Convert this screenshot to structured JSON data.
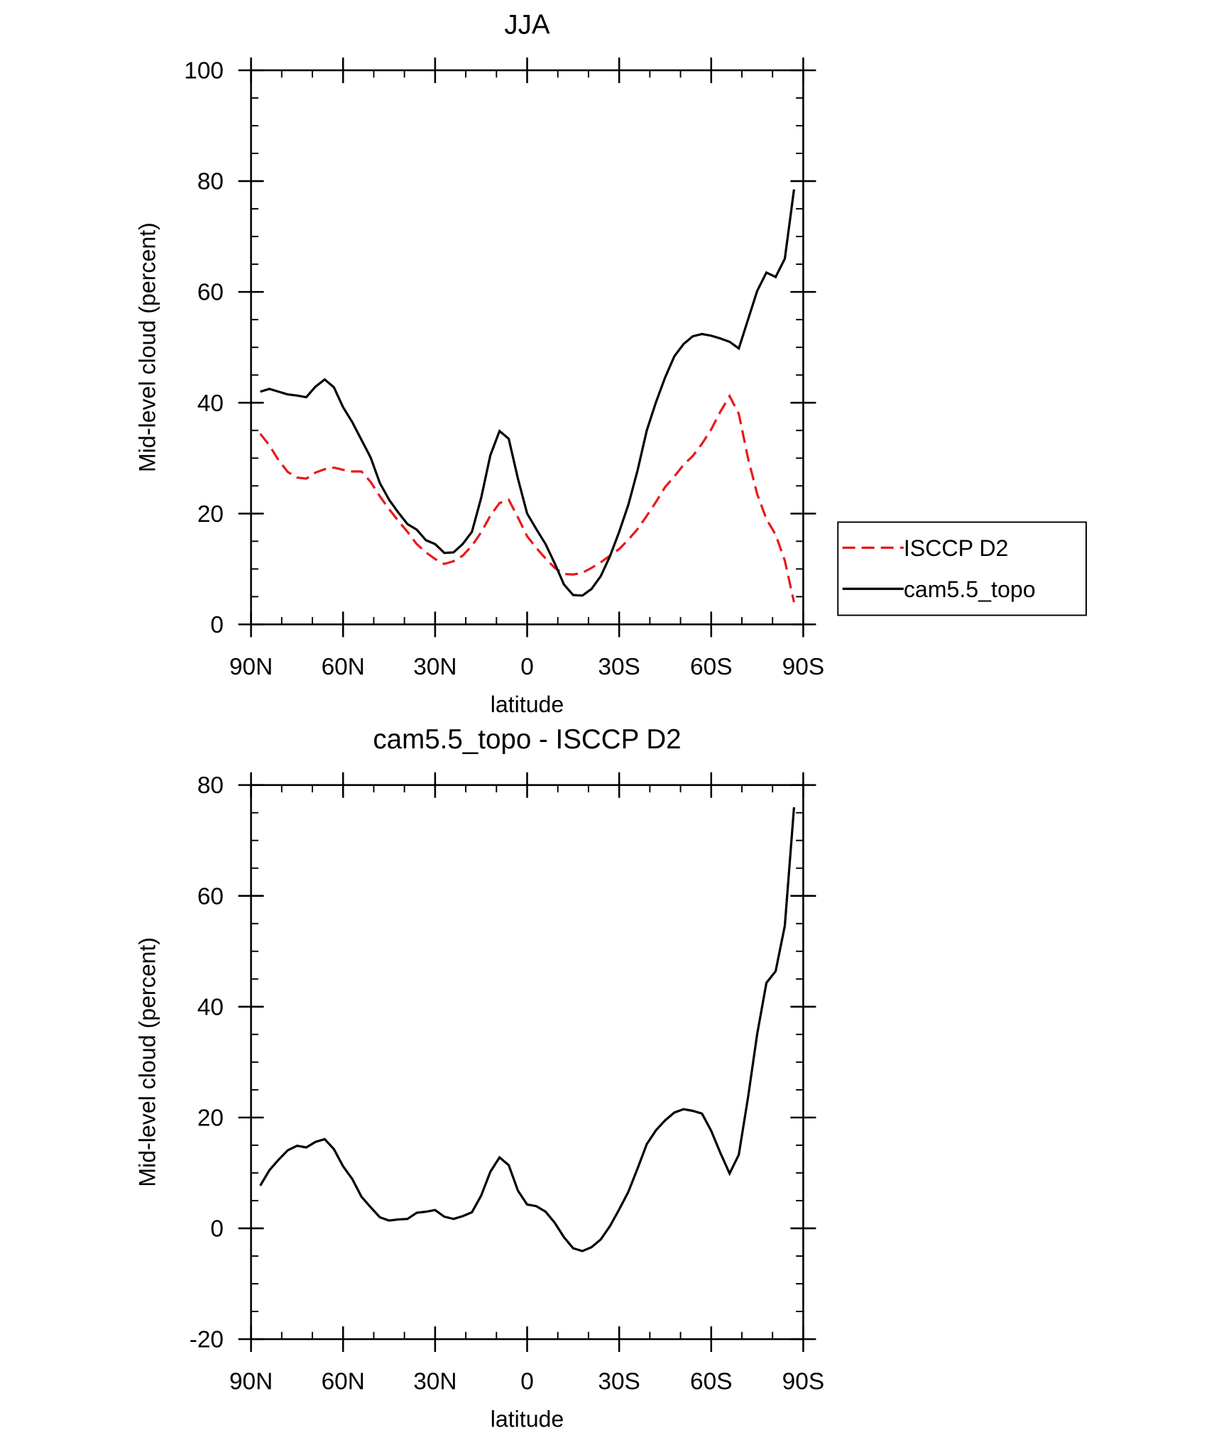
{
  "chart_data": [
    {
      "type": "line",
      "title": "JJA",
      "x_label": "latitude",
      "y_label": "Mid-level cloud (percent)",
      "xlim": [
        90,
        -90
      ],
      "xticks": [
        {
          "value": 90,
          "label": "90N"
        },
        {
          "value": 60,
          "label": "60N"
        },
        {
          "value": 30,
          "label": "30N"
        },
        0,
        {
          "value": -30,
          "label": "30S"
        },
        {
          "value": -60,
          "label": "60S"
        },
        {
          "value": -90,
          "label": "90S"
        }
      ],
      "ylim": [
        0,
        100
      ],
      "yticks": [
        0,
        20,
        40,
        60,
        80,
        100
      ],
      "legend": "right",
      "x": [
        87,
        84,
        81,
        78,
        75,
        72,
        69,
        66,
        63,
        60,
        57,
        54,
        51,
        48,
        45,
        42,
        39,
        36,
        33,
        30,
        27,
        24,
        21,
        18,
        15,
        12,
        9,
        6,
        3,
        0,
        -3,
        -6,
        -9,
        -12,
        -15,
        -18,
        -21,
        -24,
        -27,
        -30,
        -33,
        -36,
        -39,
        -42,
        -45,
        -48,
        -51,
        -54,
        -57,
        -60,
        -63,
        -66,
        -69,
        -72,
        -75,
        -78,
        -81,
        -84,
        -87
      ],
      "series": [
        {
          "name": "ISCCP D2",
          "color": "#e8191b",
          "style": "dashed",
          "values": [
            34.4,
            32.3,
            29.6,
            27.5,
            26.5,
            26.3,
            27.4,
            28.0,
            28.3,
            27.9,
            27.6,
            27.6,
            25.7,
            23.1,
            20.8,
            18.7,
            16.7,
            14.5,
            13.0,
            11.8,
            10.9,
            11.4,
            12.4,
            14.2,
            16.6,
            19.6,
            21.9,
            22.5,
            19.3,
            15.9,
            13.8,
            11.9,
            10.2,
            9.1,
            9.0,
            9.3,
            10.2,
            11.2,
            12.4,
            13.6,
            15.3,
            17.2,
            19.6,
            22.1,
            24.8,
            26.7,
            28.8,
            30.4,
            32.6,
            35.2,
            38.4,
            41.2,
            38.0,
            30.0,
            23.5,
            19.0,
            16.2,
            11.5,
            4.0
          ]
        },
        {
          "name": "cam5.5_topo",
          "color": "#000000",
          "style": "solid",
          "values": [
            42.0,
            42.5,
            42.0,
            41.5,
            41.3,
            41.0,
            42.9,
            44.2,
            42.8,
            39.2,
            36.5,
            33.3,
            30.1,
            25.5,
            22.5,
            20.2,
            18.1,
            17.1,
            15.2,
            14.5,
            12.9,
            13.0,
            14.5,
            16.7,
            22.8,
            30.5,
            34.9,
            33.5,
            26.3,
            20.0,
            17.2,
            14.5,
            11.0,
            7.2,
            5.3,
            5.2,
            6.4,
            8.7,
            12.3,
            16.7,
            21.6,
            27.8,
            35.0,
            40.1,
            44.6,
            48.4,
            50.6,
            52.0,
            52.4,
            52.1,
            51.6,
            51.0,
            49.8,
            55.0,
            60.2,
            63.5,
            62.7,
            66.0,
            78.5
          ]
        }
      ]
    },
    {
      "type": "line",
      "title": "cam5.5_topo - ISCCP D2",
      "x_label": "latitude",
      "y_label": "Mid-level cloud (percent)",
      "xlim": [
        90,
        -90
      ],
      "xticks": [
        {
          "value": 90,
          "label": "90N"
        },
        {
          "value": 60,
          "label": "60N"
        },
        {
          "value": 30,
          "label": "30N"
        },
        0,
        {
          "value": -30,
          "label": "30S"
        },
        {
          "value": -60,
          "label": "60S"
        },
        {
          "value": -90,
          "label": "90S"
        }
      ],
      "ylim": [
        -20,
        80
      ],
      "yticks": [
        -20,
        0,
        20,
        40,
        60,
        80
      ],
      "x": [
        87,
        84,
        81,
        78,
        75,
        72,
        69,
        66,
        63,
        60,
        57,
        54,
        51,
        48,
        45,
        42,
        39,
        36,
        33,
        30,
        27,
        24,
        21,
        18,
        15,
        12,
        9,
        6,
        3,
        0,
        -3,
        -6,
        -9,
        -12,
        -15,
        -18,
        -21,
        -24,
        -27,
        -30,
        -33,
        -36,
        -39,
        -42,
        -45,
        -48,
        -51,
        -54,
        -57,
        -60,
        -63,
        -66,
        -69,
        -72,
        -75,
        -78,
        -81,
        -84,
        -87
      ],
      "series": [
        {
          "color": "#000000",
          "style": "solid",
          "values": [
            7.7,
            10.5,
            12.4,
            14.1,
            14.9,
            14.6,
            15.6,
            16.1,
            14.3,
            11.2,
            8.9,
            5.7,
            3.8,
            2.0,
            1.4,
            1.6,
            1.7,
            2.8,
            3.0,
            3.3,
            2.1,
            1.7,
            2.2,
            2.9,
            5.9,
            10.2,
            12.8,
            11.4,
            6.8,
            4.3,
            4.0,
            3.0,
            1.0,
            -1.6,
            -3.6,
            -4.1,
            -3.4,
            -2.0,
            0.4,
            3.4,
            6.6,
            10.8,
            15.2,
            17.7,
            19.5,
            20.9,
            21.5,
            21.2,
            20.7,
            17.6,
            13.6,
            9.9,
            13.3,
            23.6,
            35.1,
            44.3,
            46.4,
            54.6,
            76.0
          ]
        }
      ]
    }
  ]
}
